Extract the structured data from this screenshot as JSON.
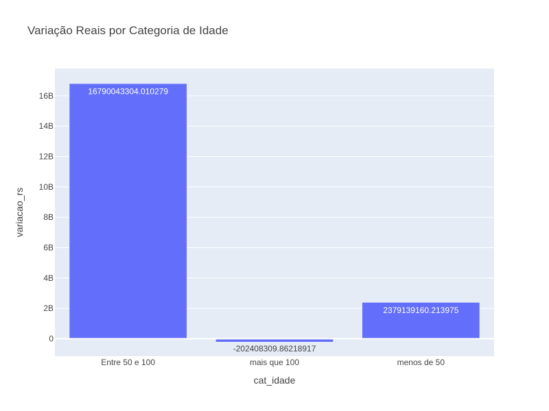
{
  "chart_data": {
    "type": "bar",
    "title": "Variação Reais por Categoria de Idade",
    "xlabel": "cat_idade",
    "ylabel": "variacao_rs",
    "categories": [
      "Entre 50 e 100",
      "mais que 100",
      "menos de 50"
    ],
    "values": [
      16790043304.010279,
      -202408309.86218917,
      2379139160.213975
    ],
    "data_labels": [
      "16790043304.010279",
      "-202408309.86218917",
      "2379139160.213975"
    ],
    "ylim": [
      -1150000000,
      17800000000
    ],
    "yticks": [
      0,
      2000000000,
      4000000000,
      6000000000,
      8000000000,
      10000000000,
      12000000000,
      14000000000,
      16000000000
    ],
    "ytick_labels": [
      "0",
      "2B",
      "4B",
      "6B",
      "8B",
      "10B",
      "12B",
      "14B",
      "16B"
    ],
    "grid": true,
    "colors": {
      "bar": "#636efa",
      "plot_bg": "#e5ecf6",
      "grid": "#ffffff",
      "text": "#444444",
      "label_inside": "#ffffff",
      "label_outside": "#444444"
    }
  }
}
